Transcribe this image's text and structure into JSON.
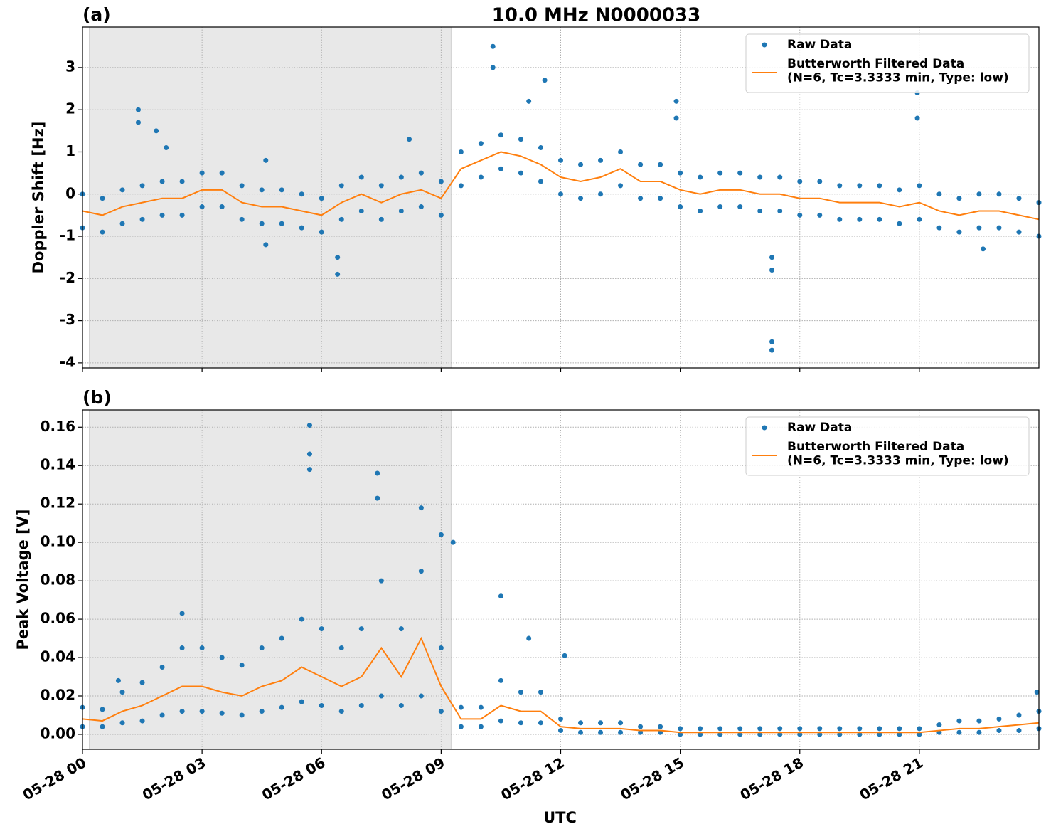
{
  "chart_data": [
    {
      "type": "line",
      "title": "10.0 MHz N0000033",
      "panel_label": "(a)",
      "y_label": "Doppler Shift [Hz]",
      "xlim": [
        0,
        24
      ],
      "ylim": [
        -4.12,
        3.96
      ],
      "yticks": [
        -4,
        -3,
        -2,
        -1,
        0,
        1,
        2,
        3
      ],
      "grid": true,
      "legend": "upper right",
      "shaded_span": [
        0.17,
        9.25
      ],
      "shade_color": "#e8e8e8",
      "series": [
        {
          "name": "Raw Data",
          "style": "points",
          "color": "#1f77b4",
          "x": [
            0,
            0.5,
            1,
            1.5,
            2,
            2.5,
            3,
            3.5,
            4,
            4.5,
            5,
            5.5,
            6,
            6.5,
            7,
            7.5,
            8,
            8.5,
            9,
            9.5,
            10,
            10.5,
            11,
            11.5,
            12,
            12.5,
            13,
            13.5,
            14,
            14.5,
            15,
            15.5,
            16,
            16.5,
            17,
            17.5,
            18,
            18.5,
            19,
            19.5,
            20,
            20.5,
            21,
            21.5,
            22,
            22.5,
            23,
            23.5,
            24,
            0,
            0.5,
            1,
            1.5,
            2,
            2.5,
            3,
            3.5,
            4,
            4.5,
            5,
            5.5,
            6,
            6.5,
            7,
            7.5,
            8,
            8.5,
            9,
            9.5,
            10,
            10.5,
            11,
            11.5,
            12,
            12.5,
            13,
            13.5,
            14,
            14.5,
            15,
            15.5,
            16,
            16.5,
            17,
            17.5,
            18,
            18.5,
            19,
            19.5,
            20,
            20.5,
            21,
            21.5,
            22,
            22.5,
            23,
            23.5,
            24,
            1.4,
            1.4,
            1.85,
            2.1,
            4.6,
            4.6,
            6.4,
            6.4,
            8.2,
            10.3,
            10.3,
            11.2,
            11.6,
            14.9,
            14.9,
            17.3,
            17.3,
            17.3,
            17.3,
            20.95,
            20.95,
            22.6
          ],
          "values": [
            0,
            -0.1,
            0.1,
            0.2,
            0.3,
            0.3,
            0.5,
            0.5,
            0.2,
            0.1,
            0.1,
            0,
            -0.1,
            0.2,
            0.4,
            0.2,
            0.4,
            0.5,
            0.3,
            1.0,
            1.2,
            1.4,
            1.3,
            1.1,
            0.8,
            0.7,
            0.8,
            1.0,
            0.7,
            0.7,
            0.5,
            0.4,
            0.5,
            0.5,
            0.4,
            0.4,
            0.3,
            0.3,
            0.2,
            0.2,
            0.2,
            0.1,
            0.2,
            0,
            -0.1,
            0,
            0,
            -0.1,
            -0.2,
            -0.8,
            -0.9,
            -0.7,
            -0.6,
            -0.5,
            -0.5,
            -0.3,
            -0.3,
            -0.6,
            -0.7,
            -0.7,
            -0.8,
            -0.9,
            -0.6,
            -0.4,
            -0.6,
            -0.4,
            -0.3,
            -0.5,
            0.2,
            0.4,
            0.6,
            0.5,
            0.3,
            0,
            -0.1,
            0,
            0.2,
            -0.1,
            -0.1,
            -0.3,
            -0.4,
            -0.3,
            -0.3,
            -0.4,
            -0.4,
            -0.5,
            -0.5,
            -0.6,
            -0.6,
            -0.6,
            -0.7,
            -0.6,
            -0.8,
            -0.9,
            -0.8,
            -0.8,
            -0.9,
            -1.0,
            2.0,
            1.7,
            1.5,
            1.1,
            -1.2,
            0.8,
            -1.9,
            -1.5,
            1.3,
            3.5,
            3.0,
            2.2,
            2.7,
            2.2,
            1.8,
            -3.7,
            -3.5,
            -1.8,
            -1.5,
            2.4,
            1.8,
            -1.3
          ]
        },
        {
          "name": "Butterworth Filtered Data\n(N=6, Tc=3.3333 min, Type: low)",
          "style": "line",
          "color": "#ff7f0e",
          "x": [
            0,
            0.5,
            1,
            1.5,
            2,
            2.5,
            3,
            3.5,
            4,
            4.5,
            5,
            5.5,
            6,
            6.5,
            7,
            7.5,
            8,
            8.5,
            9,
            9.5,
            10,
            10.5,
            11,
            11.5,
            12,
            12.5,
            13,
            13.5,
            14,
            14.5,
            15,
            15.5,
            16,
            16.5,
            17,
            17.5,
            18,
            18.5,
            19,
            19.5,
            20,
            20.5,
            21,
            21.5,
            22,
            22.5,
            23,
            23.5,
            24
          ],
          "values": [
            -0.4,
            -0.5,
            -0.3,
            -0.2,
            -0.1,
            -0.1,
            0.1,
            0.1,
            -0.2,
            -0.3,
            -0.3,
            -0.4,
            -0.5,
            -0.2,
            0,
            -0.2,
            0,
            0.1,
            -0.1,
            0.6,
            0.8,
            1.0,
            0.9,
            0.7,
            0.4,
            0.3,
            0.4,
            0.6,
            0.3,
            0.3,
            0.1,
            0,
            0.1,
            0.1,
            0,
            0,
            -0.1,
            -0.1,
            -0.2,
            -0.2,
            -0.2,
            -0.3,
            -0.2,
            -0.4,
            -0.5,
            -0.4,
            -0.4,
            -0.5,
            -0.6
          ]
        }
      ]
    },
    {
      "type": "line",
      "panel_label": "(b)",
      "y_label": "Peak Voltage [V]",
      "x_label": "UTC",
      "xlim": [
        0,
        24
      ],
      "ylim": [
        -0.0078,
        0.169
      ],
      "xticks": [
        {
          "value": 0,
          "label": "05-28 00"
        },
        {
          "value": 3,
          "label": "05-28 03"
        },
        {
          "value": 6,
          "label": "05-28 06"
        },
        {
          "value": 9,
          "label": "05-28 09"
        },
        {
          "value": 12,
          "label": "05-28 12"
        },
        {
          "value": 15,
          "label": "05-28 15"
        },
        {
          "value": 18,
          "label": "05-28 18"
        },
        {
          "value": 21,
          "label": "05-28 21"
        }
      ],
      "yticks": [
        {
          "value": 0,
          "label": "0.00"
        },
        {
          "value": 0.02,
          "label": "0.02"
        },
        {
          "value": 0.04,
          "label": "0.04"
        },
        {
          "value": 0.06,
          "label": "0.06"
        },
        {
          "value": 0.08,
          "label": "0.08"
        },
        {
          "value": 0.1,
          "label": "0.10"
        },
        {
          "value": 0.12,
          "label": "0.12"
        },
        {
          "value": 0.14,
          "label": "0.14"
        },
        {
          "value": 0.16,
          "label": "0.16"
        }
      ],
      "grid": true,
      "legend": "upper right",
      "shaded_span": [
        0.17,
        9.25
      ],
      "shade_color": "#e8e8e8",
      "series": [
        {
          "name": "Raw Data",
          "style": "points",
          "color": "#1f77b4",
          "x": [
            0,
            0.5,
            1,
            1.5,
            2,
            2.5,
            3,
            3.5,
            4,
            4.5,
            5,
            5.5,
            6,
            6.5,
            7,
            7.5,
            8,
            8.5,
            9,
            9.5,
            10,
            10.5,
            11,
            11.5,
            12,
            12.5,
            13,
            13.5,
            14,
            14.5,
            15,
            15.5,
            16,
            16.5,
            17,
            17.5,
            18,
            18.5,
            19,
            19.5,
            20,
            20.5,
            21,
            21.5,
            22,
            22.5,
            23,
            23.5,
            24,
            0,
            0.5,
            1,
            1.5,
            2,
            2.5,
            3,
            3.5,
            4,
            4.5,
            5,
            5.5,
            6,
            6.5,
            7,
            7.5,
            8,
            8.5,
            9,
            9.5,
            10,
            10.5,
            11,
            11.5,
            12,
            12.5,
            13,
            13.5,
            14,
            14.5,
            15,
            15.5,
            16,
            16.5,
            17,
            17.5,
            18,
            18.5,
            19,
            19.5,
            20,
            20.5,
            21,
            21.5,
            22,
            22.5,
            23,
            23.5,
            24,
            5.7,
            5.7,
            5.7,
            7.4,
            7.4,
            8.5,
            9.0,
            9.3,
            10.5,
            11.2,
            12.1,
            2.5,
            0.9,
            23.95
          ],
          "values": [
            0.014,
            0.013,
            0.022,
            0.027,
            0.035,
            0.045,
            0.045,
            0.04,
            0.036,
            0.045,
            0.05,
            0.06,
            0.055,
            0.045,
            0.055,
            0.08,
            0.055,
            0.085,
            0.045,
            0.014,
            0.014,
            0.028,
            0.022,
            0.022,
            0.008,
            0.006,
            0.006,
            0.006,
            0.004,
            0.004,
            0.003,
            0.003,
            0.003,
            0.003,
            0.003,
            0.003,
            0.003,
            0.003,
            0.003,
            0.003,
            0.003,
            0.003,
            0.003,
            0.005,
            0.007,
            0.007,
            0.008,
            0.01,
            0.012,
            0.004,
            0.004,
            0.006,
            0.007,
            0.01,
            0.012,
            0.012,
            0.011,
            0.01,
            0.012,
            0.014,
            0.017,
            0.015,
            0.012,
            0.015,
            0.02,
            0.015,
            0.02,
            0.012,
            0.004,
            0.004,
            0.007,
            0.006,
            0.006,
            0.002,
            0.001,
            0.001,
            0.001,
            0.001,
            0.001,
            0,
            0,
            0,
            0,
            0,
            0,
            0,
            0,
            0,
            0,
            0,
            0,
            0,
            0.001,
            0.001,
            0.001,
            0.002,
            0.002,
            0.003,
            0.161,
            0.146,
            0.138,
            0.136,
            0.123,
            0.118,
            0.104,
            0.1,
            0.072,
            0.05,
            0.041,
            0.063,
            0.028,
            0.022
          ]
        },
        {
          "name": "Butterworth Filtered Data\n(N=6, Tc=3.3333 min, Type: low)",
          "style": "line",
          "color": "#ff7f0e",
          "x": [
            0,
            0.5,
            1,
            1.5,
            2,
            2.5,
            3,
            3.5,
            4,
            4.5,
            5,
            5.5,
            6,
            6.5,
            7,
            7.5,
            8,
            8.5,
            9,
            9.5,
            10,
            10.5,
            11,
            11.5,
            12,
            12.5,
            13,
            13.5,
            14,
            14.5,
            15,
            15.5,
            16,
            16.5,
            17,
            17.5,
            18,
            18.5,
            19,
            19.5,
            20,
            20.5,
            21,
            21.5,
            22,
            22.5,
            23,
            23.5,
            24
          ],
          "values": [
            0.008,
            0.007,
            0.012,
            0.015,
            0.02,
            0.025,
            0.025,
            0.022,
            0.02,
            0.025,
            0.028,
            0.035,
            0.03,
            0.025,
            0.03,
            0.045,
            0.03,
            0.05,
            0.025,
            0.008,
            0.008,
            0.015,
            0.012,
            0.012,
            0.004,
            0.003,
            0.003,
            0.003,
            0.002,
            0.002,
            0.001,
            0.001,
            0.001,
            0.001,
            0.001,
            0.001,
            0.001,
            0.001,
            0.001,
            0.001,
            0.001,
            0.001,
            0.001,
            0.002,
            0.003,
            0.003,
            0.004,
            0.005,
            0.006
          ]
        }
      ]
    }
  ]
}
